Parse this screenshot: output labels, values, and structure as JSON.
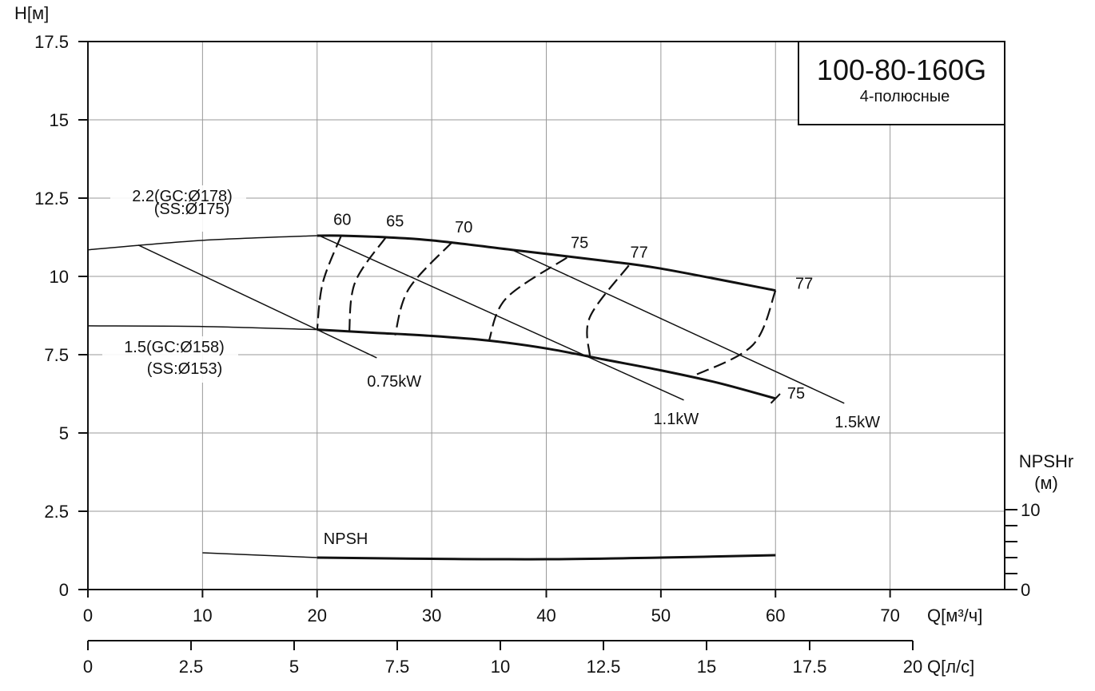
{
  "chart_data": {
    "type": "line",
    "title": "100-80-160G",
    "subtitle": "4-полюсные",
    "ylabel": "H[м]",
    "xlabel": "Q[м³/ч]",
    "xlabel2": "Q[л/с]",
    "npsh_axis_label": [
      "NPSHr",
      "(м)"
    ],
    "xlim": [
      0,
      80
    ],
    "ylim": [
      0,
      17.5
    ],
    "grid": true,
    "x_ticks": [
      "0",
      "10",
      "20",
      "30",
      "40",
      "50",
      "60",
      "70"
    ],
    "x_ticks_values": [
      0,
      10,
      20,
      30,
      40,
      50,
      60,
      70
    ],
    "x2_ticks": [
      "0",
      "2.5",
      "5",
      "7.5",
      "10",
      "12.5",
      "15",
      "17.5",
      "20"
    ],
    "x2_ticks_values": [
      0,
      2.5,
      5,
      7.5,
      10,
      12.5,
      15,
      17.5,
      20
    ],
    "y_ticks": [
      "0",
      "2.5",
      "5",
      "7.5",
      "10",
      "12.5",
      "15",
      "17.5"
    ],
    "y_ticks_values": [
      0,
      2.5,
      5,
      7.5,
      10,
      12.5,
      15,
      17.5
    ],
    "npsh_ticks": [
      "0",
      "10"
    ],
    "npsh_ticks_values": [
      0,
      10
    ],
    "npsh_minor_ticks": [
      2,
      4,
      6,
      8
    ],
    "npsh_ylim": [
      0,
      10
    ],
    "series": [
      {
        "name": "2.2(GC:Ø178) (SS:Ø175)",
        "label_lines": [
          "2.2(GC:Ø178)",
          "(SS:Ø175)"
        ],
        "style": "head",
        "x": [
          0,
          10,
          20,
          22,
          26,
          30,
          37,
          45,
          50,
          60
        ],
        "y": [
          10.85,
          11.15,
          11.3,
          11.3,
          11.25,
          11.15,
          10.85,
          10.5,
          10.25,
          9.55
        ]
      },
      {
        "name": "1.5(GC:Ø158) (SS:Ø153)",
        "label_lines": [
          "1.5(GC:Ø158)",
          "(SS:Ø153)"
        ],
        "style": "head",
        "x": [
          0,
          10,
          20,
          25,
          30,
          35,
          40,
          45,
          50,
          55,
          60
        ],
        "y": [
          8.42,
          8.4,
          8.3,
          8.2,
          8.1,
          7.95,
          7.7,
          7.35,
          7.0,
          6.6,
          6.1
        ]
      },
      {
        "name": "NPSH",
        "style": "npsh",
        "x": [
          10,
          20,
          30,
          40,
          50,
          60
        ],
        "y": [
          4.6,
          4.0,
          3.85,
          3.8,
          4.0,
          4.3
        ]
      }
    ],
    "power_lines": [
      {
        "label": "0.75kW",
        "x": [
          4.4,
          25.2
        ],
        "y": [
          11.0,
          7.4
        ]
      },
      {
        "label": "1.1kW",
        "x": [
          20.2,
          52.0
        ],
        "y": [
          11.3,
          6.05
        ]
      },
      {
        "label": "1.5kW",
        "x": [
          37.0,
          66.0
        ],
        "y": [
          10.85,
          5.95
        ]
      }
    ],
    "efficiency_curves": [
      {
        "label": "60",
        "x": [
          22.1,
          20.5,
          20.0
        ],
        "y": [
          11.3,
          9.8,
          8.3
        ]
      },
      {
        "label": "65",
        "x": [
          26.0,
          23.3,
          22.8
        ],
        "y": [
          11.25,
          9.8,
          8.2
        ]
      },
      {
        "label": "70",
        "x": [
          31.8,
          28.0,
          26.8
        ],
        "y": [
          11.1,
          9.6,
          8.12
        ]
      },
      {
        "label": "75",
        "x": [
          41.8,
          36.5,
          35.0
        ],
        "y": [
          10.6,
          9.3,
          7.95
        ]
      },
      {
        "label": "77",
        "x": [
          47.2,
          43.8,
          43.8
        ],
        "y": [
          10.35,
          8.7,
          7.45
        ]
      },
      {
        "label": "77",
        "x": [
          60.0,
          58.0,
          52.7
        ],
        "y": [
          9.55,
          7.8,
          6.8
        ]
      }
    ],
    "point_labels": [
      {
        "text": "60",
        "x": 22.2,
        "y": 11.65
      },
      {
        "text": "65",
        "x": 26.8,
        "y": 11.6
      },
      {
        "text": "70",
        "x": 32.8,
        "y": 11.4
      },
      {
        "text": "75",
        "x": 42.9,
        "y": 10.9
      },
      {
        "text": "77",
        "x": 48.1,
        "y": 10.6
      },
      {
        "text": "77",
        "x": 62.5,
        "y": 9.6
      },
      {
        "text": "75",
        "x": 61.8,
        "y": 6.1
      },
      {
        "text": "NPSH",
        "x": 22.5,
        "y": 1.45
      }
    ]
  }
}
